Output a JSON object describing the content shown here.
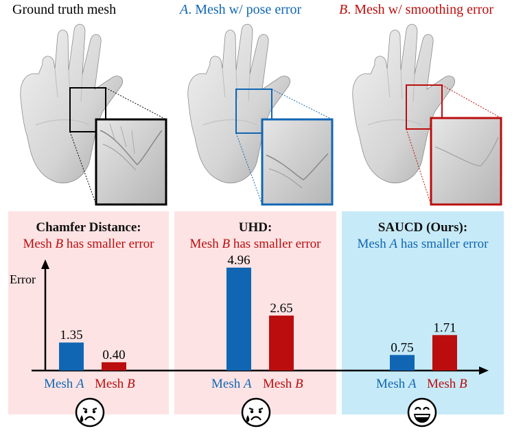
{
  "colors": {
    "mesh_a": "#1166b3",
    "mesh_b": "#bb0d0d",
    "panel_pink": "#fde3e4",
    "panel_blue": "#c6eaf7",
    "axis": "#000000"
  },
  "columns": [
    {
      "title_prefix": "",
      "title_letter": "",
      "title_text": "Ground truth mesh",
      "title_color": "#000000",
      "box_color": "#000000",
      "icon": "hand-mesh"
    },
    {
      "title_prefix": "",
      "title_letter": "A",
      "title_text": ". Mesh w/ pose error",
      "title_color": "#1166b3",
      "box_color": "#1166b3",
      "icon": "hand-mesh"
    },
    {
      "title_prefix": "",
      "title_letter": "B",
      "title_text": ". Mesh w/ smoothing error",
      "title_color": "#bb0d0d",
      "box_color": "#bb0d0d",
      "icon": "hand-mesh"
    }
  ],
  "panels": [
    {
      "title": "Chamfer Distance:",
      "sub_pre": "Mesh ",
      "sub_letter": "B",
      "sub_post": " has smaller error",
      "sub_color": "#bb0d0d",
      "emoji": "sad-tear-face-icon"
    },
    {
      "title": "UHD:",
      "sub_pre": "Mesh ",
      "sub_letter": "B",
      "sub_post": " has smaller error",
      "sub_color": "#bb0d0d",
      "emoji": "sad-tear-face-icon"
    },
    {
      "title": "SAUCD (Ours):",
      "sub_pre": "Mesh ",
      "sub_letter": "A",
      "sub_post": " has smaller error",
      "sub_color": "#1166b3",
      "emoji": "grinning-face-icon"
    }
  ],
  "axis": {
    "ylabel": "Error"
  },
  "xlabels": {
    "a_pre": "Mesh ",
    "a_letter": "A",
    "b_pre": "Mesh ",
    "b_letter": "B"
  },
  "chart_data": {
    "type": "bar",
    "ylabel": "Error",
    "categories": [
      "Chamfer Distance",
      "UHD",
      "SAUCD (Ours)"
    ],
    "series": [
      {
        "name": "Mesh A",
        "values": [
          1.35,
          4.96,
          0.75
        ],
        "labels": [
          "1.35",
          "4.96",
          "0.75"
        ]
      },
      {
        "name": "Mesh B",
        "values": [
          0.4,
          2.65,
          1.71
        ],
        "labels": [
          "0.40",
          "2.65",
          "1.71"
        ]
      }
    ]
  }
}
